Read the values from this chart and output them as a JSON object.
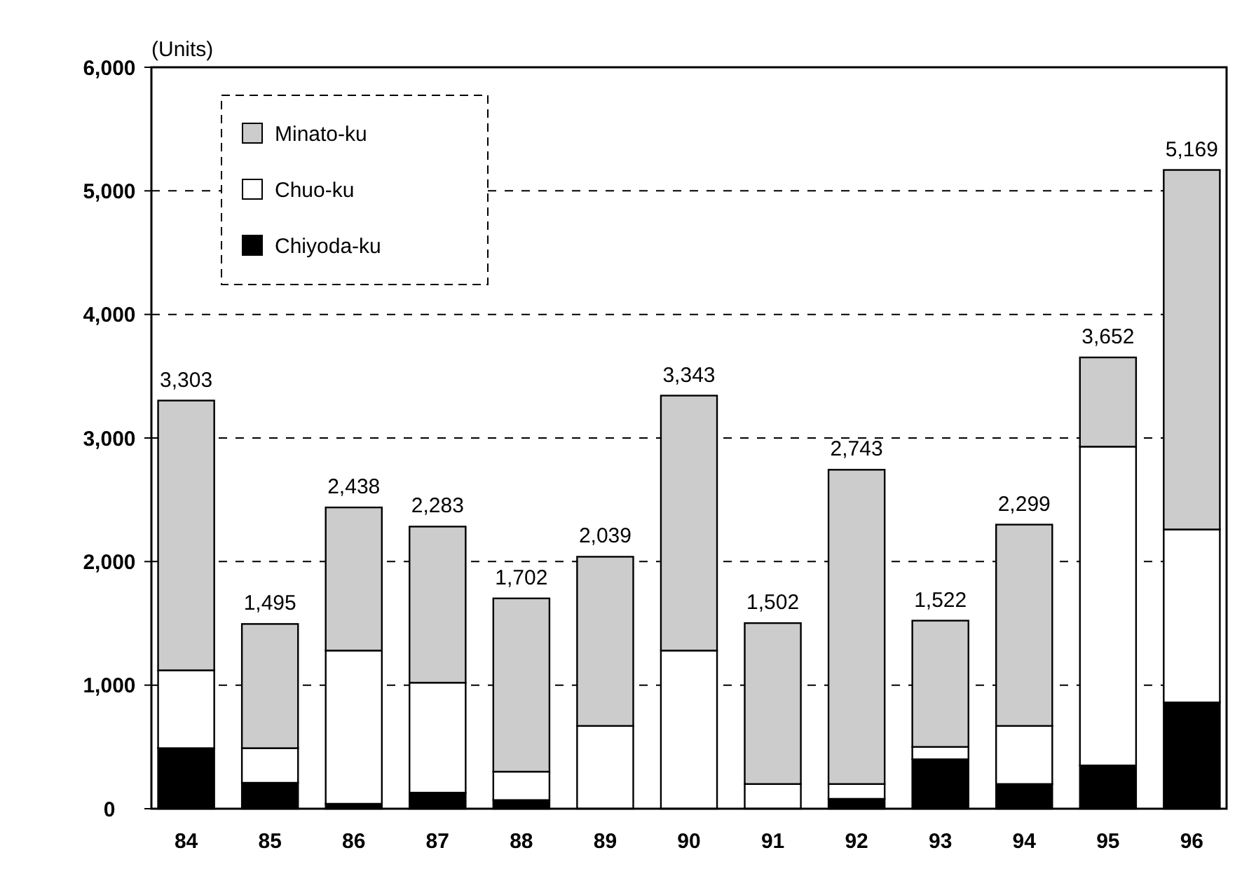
{
  "chart_data": {
    "type": "bar",
    "stacked": true,
    "ylabel": "(Units)",
    "categories": [
      "84",
      "85",
      "86",
      "87",
      "88",
      "89",
      "90",
      "91",
      "92",
      "93",
      "94",
      "95",
      "96"
    ],
    "series": [
      {
        "name": "Chiyoda-ku",
        "color": "#000000",
        "values": [
          490,
          210,
          40,
          130,
          70,
          null,
          null,
          0,
          80,
          400,
          200,
          350,
          860
        ]
      },
      {
        "name": "Chuo-ku",
        "color": "#ffffff",
        "values": [
          630,
          280,
          1240,
          890,
          230,
          670,
          1280,
          200,
          120,
          100,
          470,
          2580,
          1400
        ]
      },
      {
        "name": "Minato-ku",
        "color": "#cccccc",
        "values": [
          2183,
          1005,
          1158,
          1263,
          1402,
          1369,
          2063,
          1302,
          2543,
          1022,
          1629,
          722,
          2909
        ]
      }
    ],
    "totals": [
      "3,303",
      "1,495",
      "2,438",
      "2,283",
      "1,702",
      "2,039",
      "3,343",
      "1,502",
      "2,743",
      "1,522",
      "2,299",
      "3,652",
      "5,169"
    ],
    "ylim": [
      0,
      6000
    ],
    "yticks": [
      {
        "value": 0,
        "label": "0"
      },
      {
        "value": 1000,
        "label": "1,000"
      },
      {
        "value": 2000,
        "label": "2,000"
      },
      {
        "value": 3000,
        "label": "3,000"
      },
      {
        "value": 4000,
        "label": "4,000"
      },
      {
        "value": 5000,
        "label": "5,000"
      },
      {
        "value": 6000,
        "label": "6,000"
      }
    ],
    "grid": "y",
    "legend": "top left"
  }
}
